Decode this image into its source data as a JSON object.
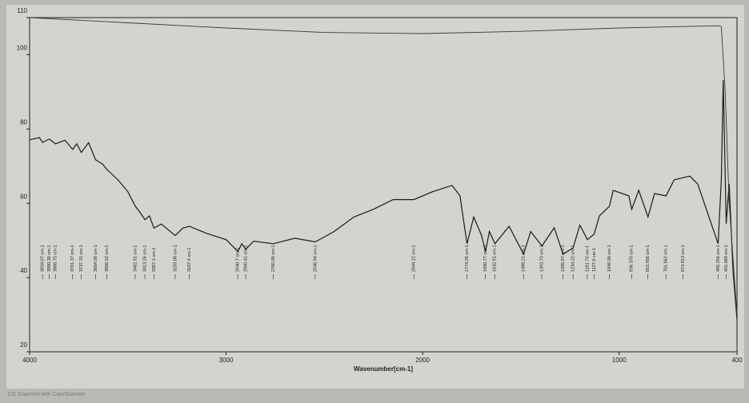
{
  "chart_data": {
    "type": "line",
    "xlabel": "Wavenumber[cm-1]",
    "footer": "CS Scanned with CamScanner",
    "xlim": [
      4000,
      400
    ],
    "ylim": [
      20,
      110
    ],
    "xticks": [
      4000,
      3000,
      2000,
      1000,
      400
    ],
    "yticks": [
      20,
      40,
      60,
      80,
      100,
      110
    ],
    "series": [
      {
        "color": "#1a1a1a",
        "x": [
          4000,
          3950,
          3934,
          3900,
          3868,
          3820,
          3781,
          3760,
          3737,
          3700,
          3664,
          3630,
          3606,
          3550,
          3500,
          3462,
          3440,
          3413,
          3390,
          3367,
          3330,
          3259,
          3220,
          3187,
          3100,
          3000,
          2940,
          2920,
          2900,
          2860,
          2760,
          2650,
          2546,
          2450,
          2350,
          2250,
          2150,
          2044,
          1950,
          1850,
          1810,
          1774,
          1740,
          1700,
          1680,
          1660,
          1632,
          1560,
          1486,
          1450,
          1393,
          1330,
          1285,
          1234,
          1200,
          1161,
          1127,
          1100,
          1049,
          1030,
          950,
          936,
          900,
          853,
          820,
          761,
          720,
          674,
          640,
          600,
          496,
          480,
          470,
          455,
          440,
          420,
          400
        ],
        "values": [
          77.1,
          77.7,
          76.4,
          77.3,
          76,
          77,
          74.5,
          76,
          73.7,
          76.3,
          71.7,
          70.6,
          69.1,
          66.3,
          63.1,
          59.2,
          57.7,
          55.6,
          56.6,
          53.3,
          54.4,
          51.3,
          53.3,
          53.8,
          51.9,
          50.2,
          47,
          49.1,
          47.6,
          49.8,
          49.1,
          50.6,
          49.6,
          52.4,
          56.3,
          58.4,
          61,
          61,
          63.1,
          64.8,
          62,
          49.1,
          56.3,
          51.3,
          47,
          52.4,
          49.1,
          53.8,
          46.3,
          52.4,
          48.5,
          53.4,
          46.3,
          48,
          54.1,
          50.2,
          51.7,
          56.6,
          59.2,
          63.5,
          62,
          58.4,
          63.5,
          56.3,
          62.6,
          62,
          66.3,
          66.9,
          67.3,
          65.2,
          49.1,
          66.3,
          93.2,
          54.5,
          65.2,
          41.6,
          28.7
        ]
      },
      {
        "color": "#3a3a3a",
        "x": [
          4000,
          3500,
          3000,
          2500,
          2000,
          1500,
          1000,
          500,
          480,
          460,
          440,
          400
        ],
        "values": [
          110,
          108.6,
          107.2,
          106,
          105.7,
          106.3,
          107.2,
          107.8,
          107.6,
          90,
          60,
          30
        ]
      }
    ],
    "annotations": [
      {
        "x": 3934.07,
        "label": "3934.07 cm-1"
      },
      {
        "x": 3900.3,
        "label": "3900.30 cm-1"
      },
      {
        "x": 3868.75,
        "label": "3868.75 cm-1"
      },
      {
        "x": 3781.37,
        "label": "3781.37 cm-1"
      },
      {
        "x": 3737.31,
        "label": "3737.31 cm-1"
      },
      {
        "x": 3664.09,
        "label": "3664.09 cm-1"
      },
      {
        "x": 3606.52,
        "label": "3606.52 cm-1"
      },
      {
        "x": 3462.91,
        "label": "3462.91 cm-1"
      },
      {
        "x": 3413.26,
        "label": "3413.26 cm-1"
      },
      {
        "x": 3367.1,
        "label": "3367.1 cm-1"
      },
      {
        "x": 3259.06,
        "label": "3259.06 cm-1"
      },
      {
        "x": 3187.4,
        "label": "3187.4 cm-1"
      },
      {
        "x": 2940.7,
        "label": "2940.7 cm-1"
      },
      {
        "x": 2900.41,
        "label": "2900.41 cm-1"
      },
      {
        "x": 2760.09,
        "label": "2760.09 cm-1"
      },
      {
        "x": 2546.94,
        "label": "2546.94 cm-1"
      },
      {
        "x": 2044.12,
        "label": "2044.12 cm-1"
      },
      {
        "x": 1774.05,
        "label": "1774.05 cm-1"
      },
      {
        "x": 1680.77,
        "label": "1680.77 cm-1"
      },
      {
        "x": 1632.91,
        "label": "1632.91 cm-1"
      },
      {
        "x": 1486.21,
        "label": "1486.21 cm-1"
      },
      {
        "x": 1393.7,
        "label": "1393.70 cm-1"
      },
      {
        "x": 1285.97,
        "label": "1285.97 cm-1"
      },
      {
        "x": 1234.22,
        "label": "1234.22 cm-1"
      },
      {
        "x": 1161.73,
        "label": "1161.73 cm-1"
      },
      {
        "x": 1127.6,
        "label": "1127.6 cm-1"
      },
      {
        "x": 1049.09,
        "label": "1049.09 cm-1"
      },
      {
        "x": 936.37,
        "label": "936.370 cm-1"
      },
      {
        "x": 853.956,
        "label": "853.956 cm-1"
      },
      {
        "x": 761.662,
        "label": "761.662 cm-1"
      },
      {
        "x": 674.913,
        "label": "674.913 cm-1"
      },
      {
        "x": 496.256,
        "label": "496.256 cm-1"
      },
      {
        "x": 455.089,
        "label": "455.089 cm-1"
      }
    ]
  }
}
